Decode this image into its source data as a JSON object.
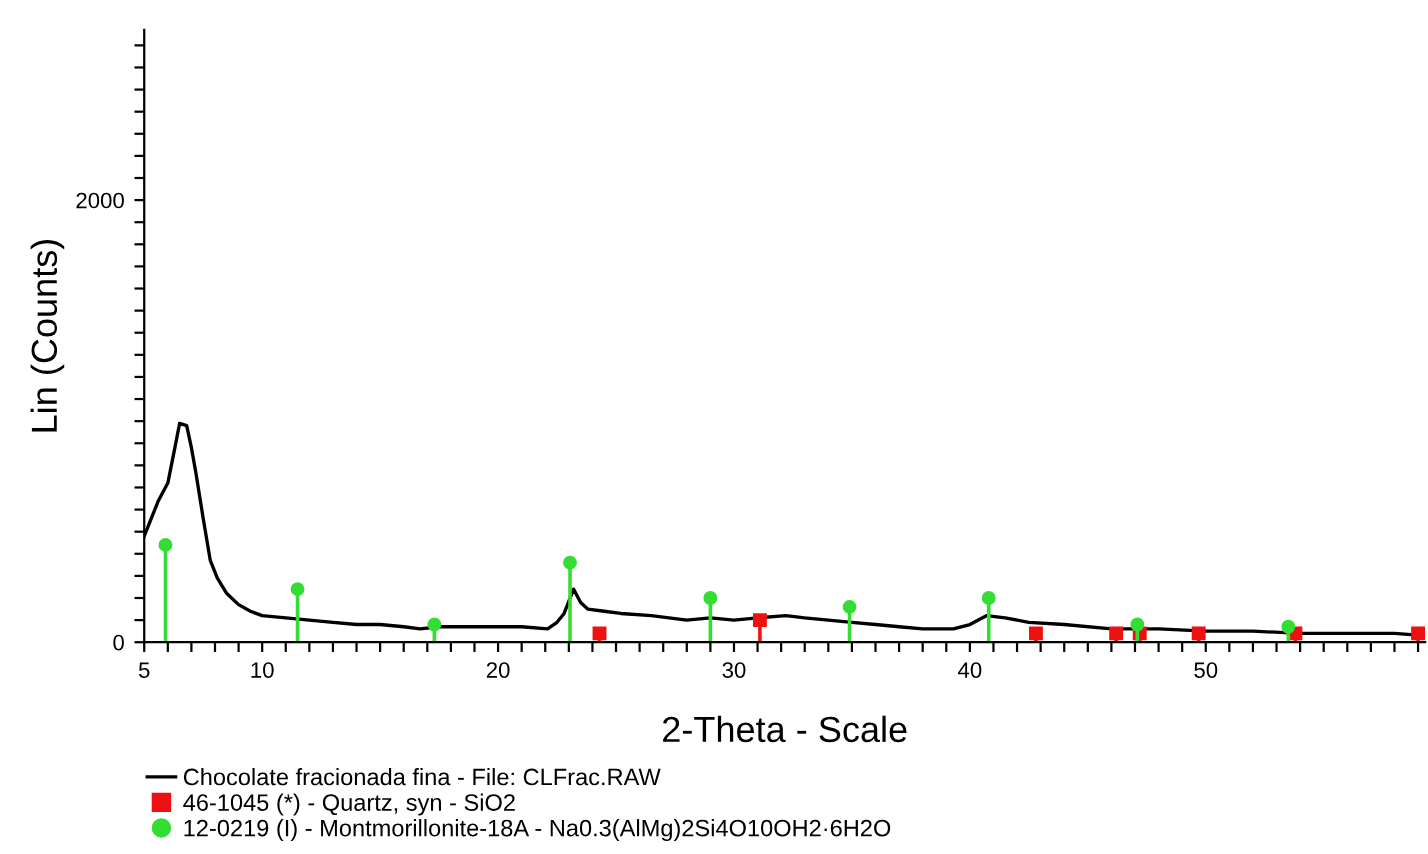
{
  "chart_data": {
    "type": "line",
    "xlabel": "2-Theta - Scale",
    "ylabel": "Lin (Counts)",
    "xlim": [
      5,
      59.3
    ],
    "ylim": [
      0,
      2770
    ],
    "xticks": [
      {
        "value": 5,
        "label": "5"
      },
      {
        "value": 6,
        "label": null
      },
      {
        "value": 7,
        "label": null
      },
      {
        "value": 8,
        "label": null
      },
      {
        "value": 9,
        "label": null
      },
      {
        "value": 10,
        "label": "10"
      },
      {
        "value": 11,
        "label": null
      },
      {
        "value": 12,
        "label": null
      },
      {
        "value": 13,
        "label": null
      },
      {
        "value": 14,
        "label": null
      },
      {
        "value": 15,
        "label": null
      },
      {
        "value": 16,
        "label": null
      },
      {
        "value": 17,
        "label": null
      },
      {
        "value": 18,
        "label": null
      },
      {
        "value": 19,
        "label": null
      },
      {
        "value": 20,
        "label": "20"
      },
      {
        "value": 21,
        "label": null
      },
      {
        "value": 22,
        "label": null
      },
      {
        "value": 23,
        "label": null
      },
      {
        "value": 24,
        "label": null
      },
      {
        "value": 25,
        "label": null
      },
      {
        "value": 26,
        "label": null
      },
      {
        "value": 27,
        "label": null
      },
      {
        "value": 28,
        "label": null
      },
      {
        "value": 29,
        "label": null
      },
      {
        "value": 30,
        "label": "30"
      },
      {
        "value": 31,
        "label": null
      },
      {
        "value": 32,
        "label": null
      },
      {
        "value": 33,
        "label": null
      },
      {
        "value": 34,
        "label": null
      },
      {
        "value": 35,
        "label": null
      },
      {
        "value": 36,
        "label": null
      },
      {
        "value": 37,
        "label": null
      },
      {
        "value": 38,
        "label": null
      },
      {
        "value": 39,
        "label": null
      },
      {
        "value": 40,
        "label": "40"
      },
      {
        "value": 41,
        "label": null
      },
      {
        "value": 42,
        "label": null
      },
      {
        "value": 43,
        "label": null
      },
      {
        "value": 44,
        "label": null
      },
      {
        "value": 45,
        "label": null
      },
      {
        "value": 46,
        "label": null
      },
      {
        "value": 47,
        "label": null
      },
      {
        "value": 48,
        "label": null
      },
      {
        "value": 49,
        "label": null
      },
      {
        "value": 50,
        "label": "50"
      },
      {
        "value": 51,
        "label": null
      },
      {
        "value": 52,
        "label": null
      },
      {
        "value": 53,
        "label": null
      },
      {
        "value": 54,
        "label": null
      },
      {
        "value": 55,
        "label": null
      },
      {
        "value": 56,
        "label": null
      },
      {
        "value": 57,
        "label": null
      },
      {
        "value": 58,
        "label": null
      },
      {
        "value": 59,
        "label": null
      }
    ],
    "yticks": [
      0,
      {
        "value": 100,
        "label": null
      },
      {
        "value": 200,
        "label": null
      },
      {
        "value": 300,
        "label": null
      },
      {
        "value": 400,
        "label": null
      },
      {
        "value": 500,
        "label": null
      },
      {
        "value": 600,
        "label": null
      },
      {
        "value": 700,
        "label": null
      },
      {
        "value": 800,
        "label": null
      },
      {
        "value": 900,
        "label": null
      },
      {
        "value": 1000,
        "label": null
      },
      {
        "value": 1100,
        "label": null
      },
      {
        "value": 1200,
        "label": null
      },
      {
        "value": 1300,
        "label": null
      },
      {
        "value": 1400,
        "label": null
      },
      {
        "value": 1500,
        "label": null
      },
      {
        "value": 1600,
        "label": null
      },
      {
        "value": 1700,
        "label": null
      },
      {
        "value": 1800,
        "label": null
      },
      {
        "value": 1900,
        "label": null
      },
      2000,
      {
        "value": 2100,
        "label": null
      },
      {
        "value": 2200,
        "label": null
      },
      {
        "value": 2300,
        "label": null
      },
      {
        "value": 2400,
        "label": null
      },
      {
        "value": 2500,
        "label": null
      },
      {
        "value": 2600,
        "label": null
      },
      {
        "value": 2700,
        "label": null
      }
    ],
    "grid": false,
    "legend": "bottom",
    "series": [
      {
        "name": "Chocolate fracionada fina - File: CLFrac.RAW",
        "color": "#000000",
        "marker": "none",
        "x": [
          5.0,
          5.3,
          5.6,
          6.0,
          6.3,
          6.5,
          6.8,
          7.0,
          7.2,
          7.5,
          7.8,
          8.1,
          8.5,
          9.0,
          9.5,
          10.0,
          11.0,
          12.0,
          13.0,
          14.0,
          15.0,
          16.0,
          16.7,
          17.5,
          18.7,
          20.0,
          21.0,
          22.1,
          22.5,
          22.8,
          23.2,
          23.5,
          23.8,
          24.5,
          25.2,
          26.5,
          28.0,
          29.0,
          30.0,
          31.0,
          32.2,
          33.0,
          34.0,
          35.0,
          36.0,
          37.0,
          38.0,
          39.3,
          40.0,
          40.7,
          41.5,
          42.5,
          44.0,
          46.0,
          48.0,
          50.0,
          52.0,
          54.0,
          56.0,
          58.0,
          59.2
        ],
        "values": [
          480,
          560,
          640,
          720,
          880,
          990,
          980,
          880,
          760,
          560,
          370,
          290,
          220,
          170,
          140,
          120,
          110,
          100,
          90,
          80,
          80,
          70,
          60,
          70,
          70,
          70,
          70,
          60,
          90,
          130,
          240,
          180,
          150,
          140,
          130,
          120,
          100,
          110,
          100,
          110,
          120,
          110,
          100,
          90,
          80,
          70,
          60,
          60,
          80,
          120,
          110,
          90,
          80,
          60,
          60,
          50,
          50,
          40,
          40,
          40,
          30
        ]
      },
      {
        "name": "46-1045 (*) - Quartz, syn - SiO2",
        "type": "lollipop",
        "color": "#ee1111",
        "marker": "square",
        "x": [
          24.3,
          31.1,
          42.8,
          46.2,
          47.2,
          49.7,
          53.8,
          59.0
        ],
        "values": [
          40,
          100,
          40,
          40,
          40,
          40,
          40,
          40
        ]
      },
      {
        "name": "12-0219 (I) - Montmorillonite-18A - Na0.3(AlMg)2Si4O10OH2·6H2O",
        "type": "lollipop",
        "color": "#33dd33",
        "marker": "circle",
        "x": [
          5.9,
          11.5,
          17.3,
          23.05,
          29.0,
          34.9,
          40.8,
          47.1,
          53.5
        ],
        "values": [
          440,
          240,
          80,
          360,
          200,
          160,
          200,
          80,
          70
        ]
      }
    ]
  }
}
